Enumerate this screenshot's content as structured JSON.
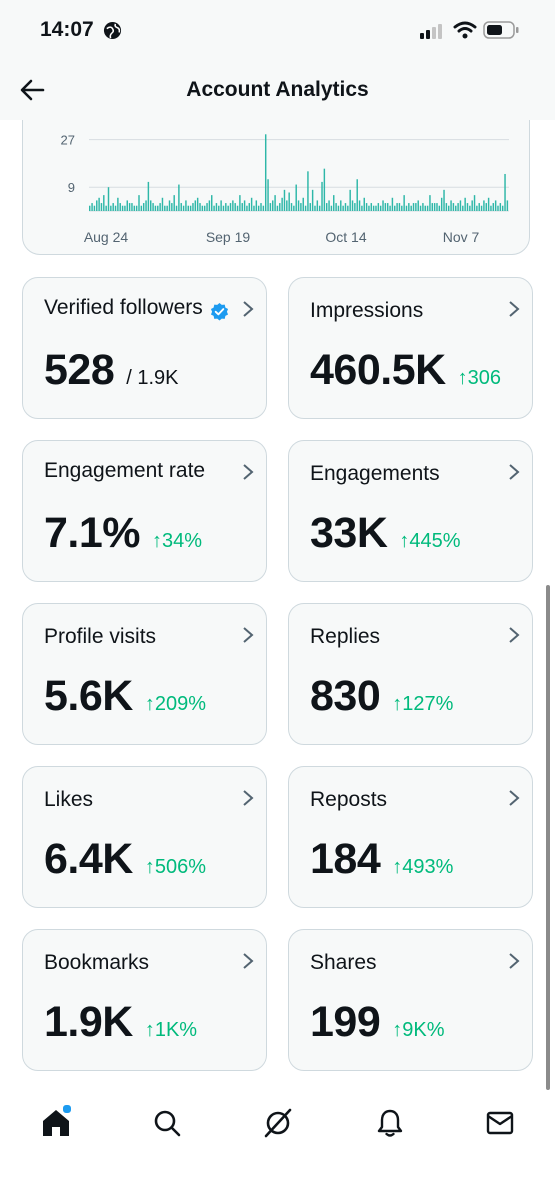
{
  "status_bar": {
    "time": "14:07"
  },
  "header": {
    "title": "Account Analytics"
  },
  "chart_data": {
    "type": "bar",
    "y_ticks": [
      "27",
      "9"
    ],
    "x_ticks": [
      "Aug 24",
      "Sep 19",
      "Oct 14",
      "Nov 7"
    ],
    "values": [
      2,
      3,
      2,
      4,
      5,
      3,
      6,
      2,
      9,
      2,
      3,
      2,
      5,
      3,
      2,
      2,
      4,
      3,
      3,
      2,
      2,
      6,
      2,
      3,
      4,
      11,
      4,
      3,
      2,
      2,
      3,
      5,
      2,
      2,
      4,
      3,
      6,
      2,
      10,
      3,
      2,
      4,
      2,
      2,
      3,
      4,
      5,
      3,
      2,
      2,
      3,
      4,
      6,
      2,
      3,
      2,
      4,
      2,
      3,
      2,
      3,
      4,
      3,
      2,
      6,
      3,
      4,
      2,
      3,
      5,
      2,
      4,
      2,
      3,
      2,
      29,
      12,
      3,
      4,
      6,
      2,
      3,
      5,
      8,
      4,
      7,
      3,
      2,
      10,
      4,
      3,
      5,
      2,
      15,
      3,
      8,
      2,
      4,
      2,
      11,
      16,
      3,
      4,
      2,
      6,
      3,
      2,
      4,
      2,
      3,
      2,
      8,
      4,
      3,
      12,
      4,
      2,
      5,
      3,
      2,
      3,
      2,
      2,
      3,
      2,
      4,
      3,
      3,
      2,
      5,
      2,
      3,
      3,
      2,
      6,
      2,
      3,
      2,
      3,
      3,
      4,
      2,
      3,
      2,
      2,
      6,
      3,
      3,
      3,
      2,
      5,
      8,
      3,
      2,
      4,
      3,
      2,
      3,
      4,
      2,
      5,
      3,
      2,
      4,
      6,
      2,
      3,
      2,
      4,
      3,
      5,
      2,
      3,
      4,
      2,
      3,
      2,
      14,
      4
    ],
    "ylim": [
      0,
      31
    ]
  },
  "stats": [
    {
      "label": "Verified followers",
      "value": "528",
      "sub": "/ 1.9K",
      "change": ""
    },
    {
      "label": "Impressions",
      "value": "460.5K",
      "sub": "",
      "change": "↑306"
    },
    {
      "label": "Engagement rate",
      "value": "7.1%",
      "sub": "",
      "change": "↑34%"
    },
    {
      "label": "Engagements",
      "value": "33K",
      "sub": "",
      "change": "↑445%"
    },
    {
      "label": "Profile visits",
      "value": "5.6K",
      "sub": "",
      "change": "↑209%"
    },
    {
      "label": "Replies",
      "value": "830",
      "sub": "",
      "change": "↑127%"
    },
    {
      "label": "Likes",
      "value": "6.4K",
      "sub": "",
      "change": "↑506%"
    },
    {
      "label": "Reposts",
      "value": "184",
      "sub": "",
      "change": "↑493%"
    },
    {
      "label": "Bookmarks",
      "value": "1.9K",
      "sub": "",
      "change": "↑1K%"
    },
    {
      "label": "Shares",
      "value": "199",
      "sub": "",
      "change": "↑9K%"
    }
  ],
  "colors": {
    "accent": "#1d9bf0",
    "bar": "#2eb7a8",
    "positive": "#00ba7c"
  },
  "nav": [
    "home-icon",
    "search-icon",
    "grok-icon",
    "bell-icon",
    "mail-icon"
  ]
}
